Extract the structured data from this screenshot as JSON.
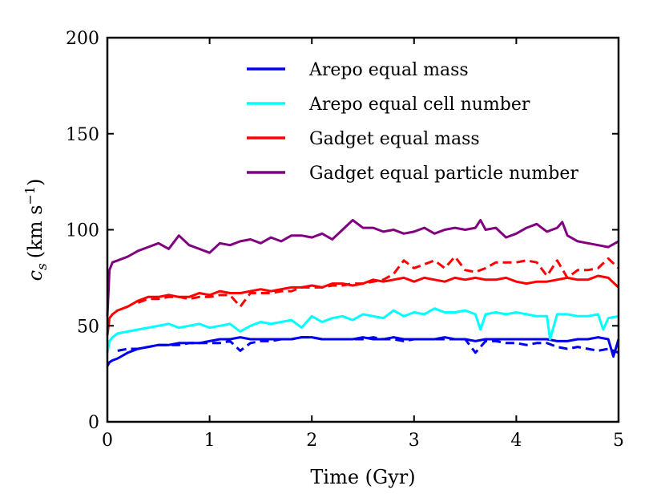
{
  "chart_data": {
    "type": "line",
    "title": "",
    "xlabel": "Time (Gyr)",
    "ylabel_parts": {
      "symbol": "c",
      "subscript": "s",
      "unit_open": "(km s",
      "unit_exp": "−1",
      "unit_close": ")"
    },
    "xlim": [
      0,
      5
    ],
    "ylim": [
      0,
      200
    ],
    "x_ticks": [
      0,
      1,
      2,
      3,
      4,
      5
    ],
    "y_ticks": [
      0,
      50,
      100,
      150,
      200
    ],
    "x_tick_labels": [
      "0",
      "1",
      "2",
      "3",
      "4",
      "5"
    ],
    "y_tick_labels": [
      "0",
      "50",
      "100",
      "150",
      "200"
    ],
    "grid": false,
    "legend_position": "upper-center",
    "series": [
      {
        "name": "Arepo equal mass",
        "color": "#0000ee",
        "style": "solid",
        "x": [
          0,
          0.02,
          0.05,
          0.1,
          0.2,
          0.3,
          0.4,
          0.5,
          0.6,
          0.7,
          0.8,
          0.9,
          1.0,
          1.1,
          1.2,
          1.3,
          1.4,
          1.5,
          1.6,
          1.7,
          1.8,
          1.9,
          2.0,
          2.1,
          2.2,
          2.3,
          2.4,
          2.5,
          2.6,
          2.7,
          2.8,
          2.9,
          3.0,
          3.1,
          3.2,
          3.3,
          3.4,
          3.5,
          3.6,
          3.7,
          3.8,
          3.9,
          4.0,
          4.1,
          4.2,
          4.3,
          4.4,
          4.5,
          4.6,
          4.7,
          4.8,
          4.9,
          4.95,
          5.0
        ],
        "y": [
          29,
          31,
          32,
          33,
          36,
          38,
          39,
          40,
          40,
          41,
          41,
          41,
          42,
          43,
          43,
          44,
          43,
          43,
          43,
          43,
          43,
          44,
          44,
          43,
          43,
          43,
          43,
          44,
          43,
          43,
          44,
          43,
          43,
          43,
          43,
          44,
          43,
          43,
          42,
          43,
          43,
          43,
          43,
          43,
          43,
          43,
          42,
          42,
          43,
          43,
          44,
          43,
          34,
          43
        ]
      },
      {
        "name": "Arepo equal mass (dashed)",
        "color": "#0000ee",
        "style": "dashed",
        "x": [
          0.1,
          0.2,
          0.3,
          0.4,
          0.5,
          0.6,
          0.7,
          0.8,
          0.9,
          1.0,
          1.1,
          1.2,
          1.3,
          1.4,
          1.5,
          1.6,
          1.7,
          1.8,
          1.9,
          2.0,
          2.1,
          2.2,
          2.3,
          2.4,
          2.5,
          2.6,
          2.7,
          2.8,
          2.9,
          3.0,
          3.1,
          3.2,
          3.3,
          3.4,
          3.5,
          3.6,
          3.7,
          3.8,
          3.9,
          4.0,
          4.1,
          4.2,
          4.3,
          4.4,
          4.5,
          4.6,
          4.7,
          4.8,
          4.9,
          5.0
        ],
        "y": [
          37,
          38,
          38,
          39,
          40,
          40,
          40,
          41,
          41,
          41,
          41,
          42,
          37,
          41,
          42,
          42,
          43,
          43,
          44,
          44,
          43,
          43,
          43,
          43,
          43,
          44,
          43,
          43,
          42,
          43,
          43,
          43,
          43,
          43,
          43,
          36,
          42,
          42,
          41,
          41,
          40,
          41,
          41,
          39,
          38,
          39,
          38,
          37,
          38,
          36
        ]
      },
      {
        "name": "Arepo equal cell number",
        "color": "#00ffff",
        "style": "solid",
        "x": [
          0,
          0.02,
          0.05,
          0.1,
          0.2,
          0.3,
          0.4,
          0.5,
          0.6,
          0.7,
          0.8,
          0.9,
          1.0,
          1.1,
          1.2,
          1.3,
          1.4,
          1.5,
          1.6,
          1.7,
          1.8,
          1.9,
          2.0,
          2.1,
          2.2,
          2.3,
          2.4,
          2.5,
          2.6,
          2.7,
          2.8,
          2.9,
          3.0,
          3.1,
          3.2,
          3.3,
          3.4,
          3.5,
          3.6,
          3.65,
          3.7,
          3.8,
          3.9,
          4.0,
          4.1,
          4.2,
          4.3,
          4.33,
          4.4,
          4.5,
          4.6,
          4.7,
          4.8,
          4.85,
          4.9,
          5.0
        ],
        "y": [
          36,
          42,
          44,
          46,
          47,
          48,
          49,
          50,
          51,
          49,
          50,
          51,
          49,
          50,
          51,
          47,
          50,
          52,
          51,
          52,
          53,
          49,
          55,
          52,
          54,
          55,
          53,
          56,
          55,
          54,
          58,
          55,
          57,
          56,
          59,
          57,
          57,
          58,
          56,
          48,
          56,
          57,
          56,
          57,
          56,
          55,
          55,
          43,
          56,
          56,
          55,
          55,
          56,
          48,
          54,
          55
        ]
      },
      {
        "name": "Gadget equal mass",
        "color": "#ff0000",
        "style": "solid",
        "x": [
          0,
          0.02,
          0.05,
          0.1,
          0.2,
          0.3,
          0.4,
          0.5,
          0.6,
          0.7,
          0.8,
          0.9,
          1.0,
          1.1,
          1.2,
          1.3,
          1.4,
          1.5,
          1.6,
          1.7,
          1.8,
          1.9,
          2.0,
          2.1,
          2.2,
          2.3,
          2.4,
          2.5,
          2.6,
          2.7,
          2.8,
          2.9,
          3.0,
          3.1,
          3.2,
          3.3,
          3.4,
          3.5,
          3.6,
          3.7,
          3.8,
          3.9,
          4.0,
          4.1,
          4.2,
          4.3,
          4.4,
          4.5,
          4.6,
          4.7,
          4.8,
          4.9,
          5.0
        ],
        "y": [
          45,
          54,
          56,
          58,
          60,
          63,
          65,
          65,
          66,
          65,
          65,
          67,
          66,
          68,
          67,
          67,
          68,
          69,
          68,
          69,
          70,
          70,
          71,
          70,
          72,
          72,
          71,
          72,
          74,
          73,
          74,
          75,
          73,
          75,
          74,
          73,
          75,
          74,
          75,
          74,
          74,
          75,
          73,
          72,
          73,
          73,
          74,
          75,
          74,
          74,
          76,
          75,
          70
        ]
      },
      {
        "name": "Gadget equal mass (dashed)",
        "color": "#ff0000",
        "style": "dashed",
        "x": [
          0.3,
          0.4,
          0.5,
          0.6,
          0.7,
          0.8,
          0.9,
          1.0,
          1.1,
          1.2,
          1.3,
          1.4,
          1.5,
          1.6,
          1.7,
          1.8,
          1.9,
          2.0,
          2.1,
          2.2,
          2.3,
          2.4,
          2.5,
          2.6,
          2.7,
          2.8,
          2.9,
          3.0,
          3.1,
          3.2,
          3.3,
          3.4,
          3.5,
          3.6,
          3.7,
          3.8,
          3.9,
          4.0,
          4.1,
          4.2,
          4.3,
          4.4,
          4.5,
          4.6,
          4.7,
          4.8,
          4.9,
          5.0
        ],
        "y": [
          62,
          64,
          64,
          65,
          65,
          64,
          65,
          65,
          66,
          66,
          60,
          67,
          67,
          67,
          68,
          68,
          70,
          70,
          70,
          71,
          71,
          72,
          72,
          73,
          74,
          77,
          84,
          80,
          82,
          84,
          80,
          86,
          79,
          78,
          80,
          83,
          83,
          83,
          84,
          83,
          76,
          84,
          75,
          79,
          79,
          80,
          85,
          80
        ]
      },
      {
        "name": "Gadget equal particle number",
        "color": "#800080",
        "style": "solid",
        "x": [
          0,
          0.02,
          0.05,
          0.1,
          0.2,
          0.3,
          0.4,
          0.5,
          0.6,
          0.7,
          0.8,
          0.9,
          1.0,
          1.1,
          1.2,
          1.3,
          1.4,
          1.5,
          1.6,
          1.7,
          1.8,
          1.9,
          2.0,
          2.1,
          2.2,
          2.3,
          2.4,
          2.5,
          2.6,
          2.7,
          2.8,
          2.9,
          3.0,
          3.1,
          3.2,
          3.3,
          3.4,
          3.5,
          3.6,
          3.65,
          3.7,
          3.8,
          3.9,
          4.0,
          4.1,
          4.2,
          4.3,
          4.4,
          4.45,
          4.5,
          4.6,
          4.7,
          4.8,
          4.9,
          5.0
        ],
        "y": [
          55,
          79,
          83,
          84,
          86,
          89,
          91,
          93,
          90,
          97,
          92,
          90,
          88,
          93,
          92,
          94,
          95,
          93,
          96,
          94,
          97,
          97,
          96,
          98,
          95,
          100,
          105,
          101,
          101,
          99,
          100,
          98,
          99,
          101,
          98,
          100,
          101,
          100,
          101,
          105,
          100,
          101,
          96,
          98,
          101,
          103,
          99,
          101,
          104,
          97,
          94,
          93,
          92,
          91,
          94
        ]
      }
    ],
    "legend_entries": [
      {
        "label": "Arepo equal mass",
        "color": "#0000ee"
      },
      {
        "label": "Arepo equal cell number",
        "color": "#00ffff"
      },
      {
        "label": "Gadget equal mass",
        "color": "#ff0000"
      },
      {
        "label": "Gadget equal particle number",
        "color": "#800080"
      }
    ]
  }
}
